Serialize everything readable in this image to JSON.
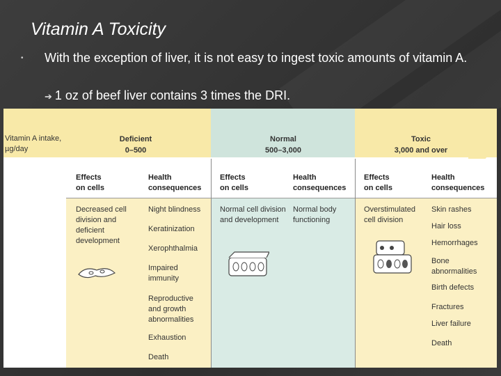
{
  "slide": {
    "title": "Vitamin A Toxicity",
    "bullet_main": "With the exception of liver, it is not easy to ingest toxic amounts of vitamin A.",
    "bullet_sub": "1 oz of beef liver contains 3 times the DRI."
  },
  "figure": {
    "intake_label_1": "Vitamin A intake,",
    "intake_label_2": "µg/day",
    "ranges": [
      {
        "name": "Deficient",
        "range": "0–500"
      },
      {
        "name": "Normal",
        "range": "500–3,000"
      },
      {
        "name": "Toxic",
        "range": "3,000 and over"
      }
    ],
    "col_effects_1": "Effects",
    "col_effects_2": "on cells",
    "col_health_1": "Health",
    "col_health_2": "consequences",
    "deficient": {
      "cells": "Decreased cell division and deficient development",
      "consequences": [
        "Night blindness",
        "Keratinization",
        "Xerophthalmia",
        "Impaired immunity",
        "Reproductive and growth abnormalities",
        "Exhaustion",
        "Death"
      ]
    },
    "normal": {
      "cells": "Normal cell division and development",
      "consequences": [
        "Normal body functioning"
      ]
    },
    "toxic": {
      "cells": "Overstimulated cell division",
      "consequences": [
        "Skin rashes",
        "Hair loss",
        "Hemorrhages",
        "Bone abnormalities",
        "Birth defects",
        "Fractures",
        "Liver failure",
        "Death"
      ]
    }
  }
}
